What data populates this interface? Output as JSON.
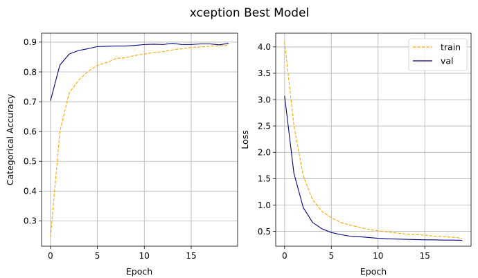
{
  "figure": {
    "suptitle": "xception Best Model"
  },
  "chart_data": [
    {
      "type": "line",
      "xlabel": "Epoch",
      "ylabel": "Categorical Accuracy",
      "xlim": [
        -0.95,
        19.95
      ],
      "ylim": [
        0.215,
        0.93
      ],
      "xticks": [
        0,
        5,
        10,
        15
      ],
      "yticks": [
        0.3,
        0.4,
        0.5,
        0.6,
        0.7,
        0.8,
        0.9
      ],
      "grid": true,
      "x": [
        0,
        1,
        2,
        3,
        4,
        5,
        6,
        7,
        8,
        9,
        10,
        11,
        12,
        13,
        14,
        15,
        16,
        17,
        18,
        19
      ],
      "series": [
        {
          "key": "train",
          "color": "#ffa500",
          "dash": "dashed",
          "values": [
            0.245,
            0.6,
            0.73,
            0.772,
            0.802,
            0.822,
            0.832,
            0.845,
            0.848,
            0.855,
            0.86,
            0.865,
            0.868,
            0.874,
            0.878,
            0.882,
            0.884,
            0.886,
            0.888,
            0.889
          ]
        },
        {
          "key": "val",
          "color": "#000080",
          "dash": "solid",
          "values": [
            0.703,
            0.823,
            0.86,
            0.872,
            0.878,
            0.885,
            0.886,
            0.887,
            0.887,
            0.889,
            0.892,
            0.893,
            0.892,
            0.896,
            0.892,
            0.892,
            0.894,
            0.894,
            0.891,
            0.896
          ]
        }
      ]
    },
    {
      "type": "line",
      "xlabel": "Epoch",
      "ylabel": "Loss",
      "xlim": [
        -0.95,
        19.95
      ],
      "ylim": [
        0.22,
        4.26
      ],
      "xticks": [
        0,
        5,
        10,
        15
      ],
      "yticks": [
        0.5,
        1.0,
        1.5,
        2.0,
        2.5,
        3.0,
        3.5,
        4.0
      ],
      "ytick_labels": [
        "0.5",
        "1.0",
        "1.5",
        "2.0",
        "2.5",
        "3.0",
        "3.5",
        "4.0"
      ],
      "grid": true,
      "legend": {
        "position": "top-right",
        "entries": [
          "train",
          "val"
        ]
      },
      "x": [
        0,
        1,
        2,
        3,
        4,
        5,
        6,
        7,
        8,
        9,
        10,
        11,
        12,
        13,
        14,
        15,
        16,
        17,
        18,
        19
      ],
      "series": [
        {
          "name": "train",
          "color": "#ffa500",
          "dash": "dashed",
          "values": [
            4.1,
            2.5,
            1.55,
            1.1,
            0.88,
            0.76,
            0.67,
            0.62,
            0.58,
            0.54,
            0.51,
            0.49,
            0.47,
            0.45,
            0.44,
            0.43,
            0.41,
            0.4,
            0.39,
            0.37
          ]
        },
        {
          "name": "val",
          "color": "#000080",
          "dash": "solid",
          "values": [
            3.07,
            1.6,
            0.95,
            0.67,
            0.55,
            0.48,
            0.44,
            0.41,
            0.4,
            0.385,
            0.37,
            0.36,
            0.355,
            0.35,
            0.345,
            0.34,
            0.34,
            0.335,
            0.335,
            0.33
          ]
        }
      ]
    }
  ]
}
